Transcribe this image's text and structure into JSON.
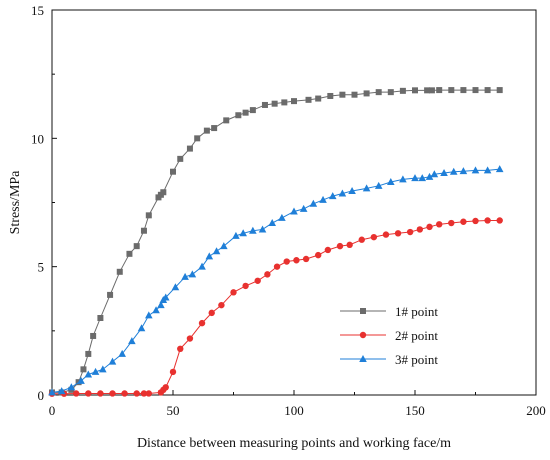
{
  "chart_data": {
    "type": "line",
    "xlabel": "Distance between measuring points and working face/m",
    "ylabel": "Stress/MPa",
    "xlim": [
      0,
      200
    ],
    "ylim": [
      0,
      15
    ],
    "xticks": [
      "0",
      "50",
      "100",
      "150",
      "200"
    ],
    "yticks": [
      "0",
      "5",
      "10",
      "15"
    ],
    "grid": false,
    "legend_position": "bottom-right",
    "series": [
      {
        "name": "1# point",
        "color": "#6b6b6b",
        "marker": "square",
        "points": [
          [
            0,
            0.1
          ],
          [
            4,
            0.1
          ],
          [
            8,
            0.2
          ],
          [
            11,
            0.5
          ],
          [
            13,
            1.0
          ],
          [
            15,
            1.6
          ],
          [
            17,
            2.3
          ],
          [
            20,
            3.0
          ],
          [
            24,
            3.9
          ],
          [
            28,
            4.8
          ],
          [
            32,
            5.5
          ],
          [
            35,
            5.8
          ],
          [
            38,
            6.4
          ],
          [
            40,
            7.0
          ],
          [
            44,
            7.7
          ],
          [
            45,
            7.8
          ],
          [
            46,
            7.9
          ],
          [
            50,
            8.7
          ],
          [
            53,
            9.2
          ],
          [
            57,
            9.6
          ],
          [
            60,
            10.0
          ],
          [
            64,
            10.3
          ],
          [
            67,
            10.4
          ],
          [
            72,
            10.7
          ],
          [
            77,
            10.9
          ],
          [
            80,
            11.0
          ],
          [
            83,
            11.1
          ],
          [
            88,
            11.3
          ],
          [
            92,
            11.35
          ],
          [
            96,
            11.4
          ],
          [
            100,
            11.45
          ],
          [
            106,
            11.5
          ],
          [
            110,
            11.55
          ],
          [
            115,
            11.65
          ],
          [
            120,
            11.7
          ],
          [
            125,
            11.7
          ],
          [
            130,
            11.75
          ],
          [
            135,
            11.8
          ],
          [
            140,
            11.8
          ],
          [
            145,
            11.85
          ],
          [
            150,
            11.87
          ],
          [
            155,
            11.87
          ],
          [
            157,
            11.87
          ],
          [
            160,
            11.88
          ],
          [
            165,
            11.88
          ],
          [
            170,
            11.88
          ],
          [
            175,
            11.88
          ],
          [
            180,
            11.88
          ],
          [
            185,
            11.88
          ]
        ]
      },
      {
        "name": "2# point",
        "color": "#e8312f",
        "marker": "circle",
        "points": [
          [
            0,
            0.05
          ],
          [
            5,
            0.05
          ],
          [
            10,
            0.06
          ],
          [
            15,
            0.06
          ],
          [
            20,
            0.06
          ],
          [
            25,
            0.06
          ],
          [
            30,
            0.06
          ],
          [
            35,
            0.06
          ],
          [
            38,
            0.06
          ],
          [
            40,
            0.06
          ],
          [
            45,
            0.1
          ],
          [
            46,
            0.2
          ],
          [
            47,
            0.3
          ],
          [
            50,
            0.9
          ],
          [
            53,
            1.8
          ],
          [
            57,
            2.2
          ],
          [
            62,
            2.8
          ],
          [
            66,
            3.2
          ],
          [
            70,
            3.5
          ],
          [
            75,
            4.0
          ],
          [
            80,
            4.25
          ],
          [
            85,
            4.45
          ],
          [
            89,
            4.7
          ],
          [
            93,
            5.0
          ],
          [
            97,
            5.2
          ],
          [
            101,
            5.25
          ],
          [
            105,
            5.3
          ],
          [
            110,
            5.45
          ],
          [
            114,
            5.65
          ],
          [
            119,
            5.8
          ],
          [
            123,
            5.85
          ],
          [
            128,
            6.05
          ],
          [
            133,
            6.15
          ],
          [
            138,
            6.25
          ],
          [
            143,
            6.3
          ],
          [
            148,
            6.35
          ],
          [
            152,
            6.45
          ],
          [
            156,
            6.55
          ],
          [
            160,
            6.65
          ],
          [
            165,
            6.7
          ],
          [
            170,
            6.75
          ],
          [
            175,
            6.78
          ],
          [
            180,
            6.8
          ],
          [
            185,
            6.8
          ]
        ]
      },
      {
        "name": "3# point",
        "color": "#1f7fd8",
        "marker": "triangle",
        "points": [
          [
            0,
            0.1
          ],
          [
            4,
            0.15
          ],
          [
            8,
            0.3
          ],
          [
            12,
            0.55
          ],
          [
            15,
            0.8
          ],
          [
            18,
            0.9
          ],
          [
            21,
            1.0
          ],
          [
            25,
            1.3
          ],
          [
            29,
            1.6
          ],
          [
            33,
            2.1
          ],
          [
            37,
            2.6
          ],
          [
            40,
            3.1
          ],
          [
            43,
            3.3
          ],
          [
            45,
            3.5
          ],
          [
            46,
            3.7
          ],
          [
            47,
            3.8
          ],
          [
            51,
            4.2
          ],
          [
            55,
            4.6
          ],
          [
            58,
            4.7
          ],
          [
            62,
            5.0
          ],
          [
            65,
            5.4
          ],
          [
            68,
            5.6
          ],
          [
            71,
            5.8
          ],
          [
            76,
            6.2
          ],
          [
            79,
            6.3
          ],
          [
            83,
            6.4
          ],
          [
            87,
            6.45
          ],
          [
            91,
            6.7
          ],
          [
            95,
            6.9
          ],
          [
            100,
            7.15
          ],
          [
            104,
            7.25
          ],
          [
            108,
            7.45
          ],
          [
            112,
            7.6
          ],
          [
            116,
            7.75
          ],
          [
            120,
            7.85
          ],
          [
            124,
            7.95
          ],
          [
            130,
            8.05
          ],
          [
            135,
            8.15
          ],
          [
            140,
            8.3
          ],
          [
            145,
            8.4
          ],
          [
            150,
            8.45
          ],
          [
            153,
            8.45
          ],
          [
            156,
            8.5
          ],
          [
            158,
            8.6
          ],
          [
            162,
            8.65
          ],
          [
            166,
            8.7
          ],
          [
            170,
            8.72
          ],
          [
            175,
            8.75
          ],
          [
            180,
            8.75
          ],
          [
            185,
            8.8
          ]
        ]
      }
    ]
  }
}
